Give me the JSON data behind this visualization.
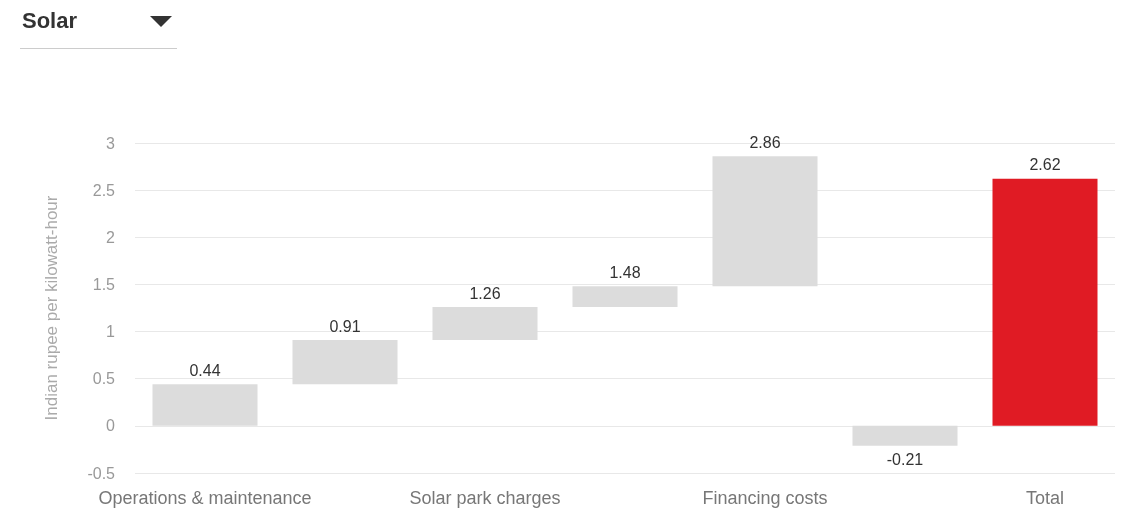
{
  "chart_data": {
    "type": "bar",
    "title": "Solar",
    "ylabel": "Indian rupee per kilowatt-hour",
    "categories": [
      "Operations & maintenance",
      null,
      "Solar park charges",
      null,
      "Financing costs",
      null,
      "Total"
    ],
    "base": [
      0,
      0.44,
      0.91,
      1.26,
      1.48,
      0,
      0
    ],
    "values": [
      0.44,
      0.47,
      0.35,
      0.22,
      1.38,
      -0.21,
      2.62
    ],
    "colors": [
      "#dcdcdc",
      "#dcdcdc",
      "#dcdcdc",
      "#dcdcdc",
      "#dcdcdc",
      "#dcdcdc",
      "#e01b24"
    ],
    "value_labels": [
      "0.44",
      "0.91",
      "1.26",
      "1.48",
      "2.86",
      "-0.21",
      "2.62"
    ],
    "ylim": [
      -0.5,
      3
    ],
    "yticks": [
      -0.5,
      0,
      0.5,
      1,
      1.5,
      2,
      2.5,
      3
    ],
    "grid": true
  }
}
